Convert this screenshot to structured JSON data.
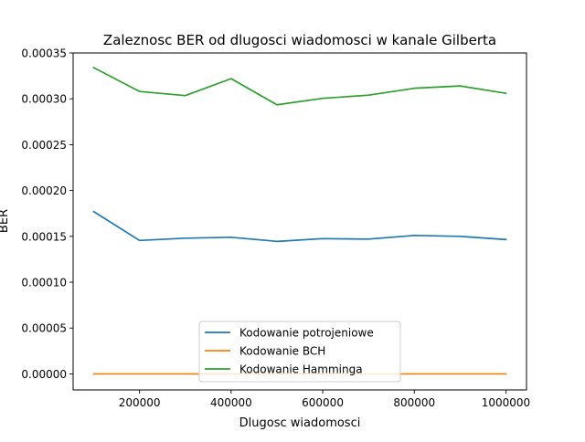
{
  "chart_data": {
    "type": "line",
    "title": "Zaleznosc BER od dlugosci wiadomosci w kanale Gilberta",
    "xlabel": "Dlugosc wiadomosci",
    "ylabel": "BER",
    "xlim": [
      55000,
      1045000
    ],
    "ylim": [
      -1.75e-05,
      0.00035
    ],
    "xticks": [
      200000,
      400000,
      600000,
      800000,
      1000000
    ],
    "xtick_labels": [
      "200000",
      "400000",
      "600000",
      "800000",
      "1000000"
    ],
    "yticks": [
      0,
      5e-05,
      0.0001,
      0.00015,
      0.0002,
      0.00025,
      0.0003,
      0.00035
    ],
    "ytick_labels": [
      "0.00000",
      "0.00005",
      "0.00010",
      "0.00015",
      "0.00020",
      "0.00025",
      "0.00030",
      "0.00035"
    ],
    "grid": false,
    "legend_position": "lower-center",
    "x": [
      100000,
      200000,
      300000,
      400000,
      500000,
      600000,
      700000,
      800000,
      900000,
      1000000
    ],
    "series": [
      {
        "name": "Kodowanie potrojeniowe",
        "color": "#1f77b4",
        "values": [
          0.000177,
          0.0001455,
          0.000148,
          0.000149,
          0.0001445,
          0.0001475,
          0.000147,
          0.000151,
          0.00015,
          0.0001465
        ]
      },
      {
        "name": "Kodowanie BCH",
        "color": "#ff7f0e",
        "values": [
          0,
          0,
          0,
          0,
          0,
          0,
          0,
          0,
          0,
          0
        ]
      },
      {
        "name": "Kodowanie Hamminga",
        "color": "#2ca02c",
        "values": [
          0.000334,
          0.000308,
          0.0003035,
          0.000322,
          0.0002935,
          0.0003005,
          0.000304,
          0.0003115,
          0.000314,
          0.000306
        ]
      }
    ]
  }
}
